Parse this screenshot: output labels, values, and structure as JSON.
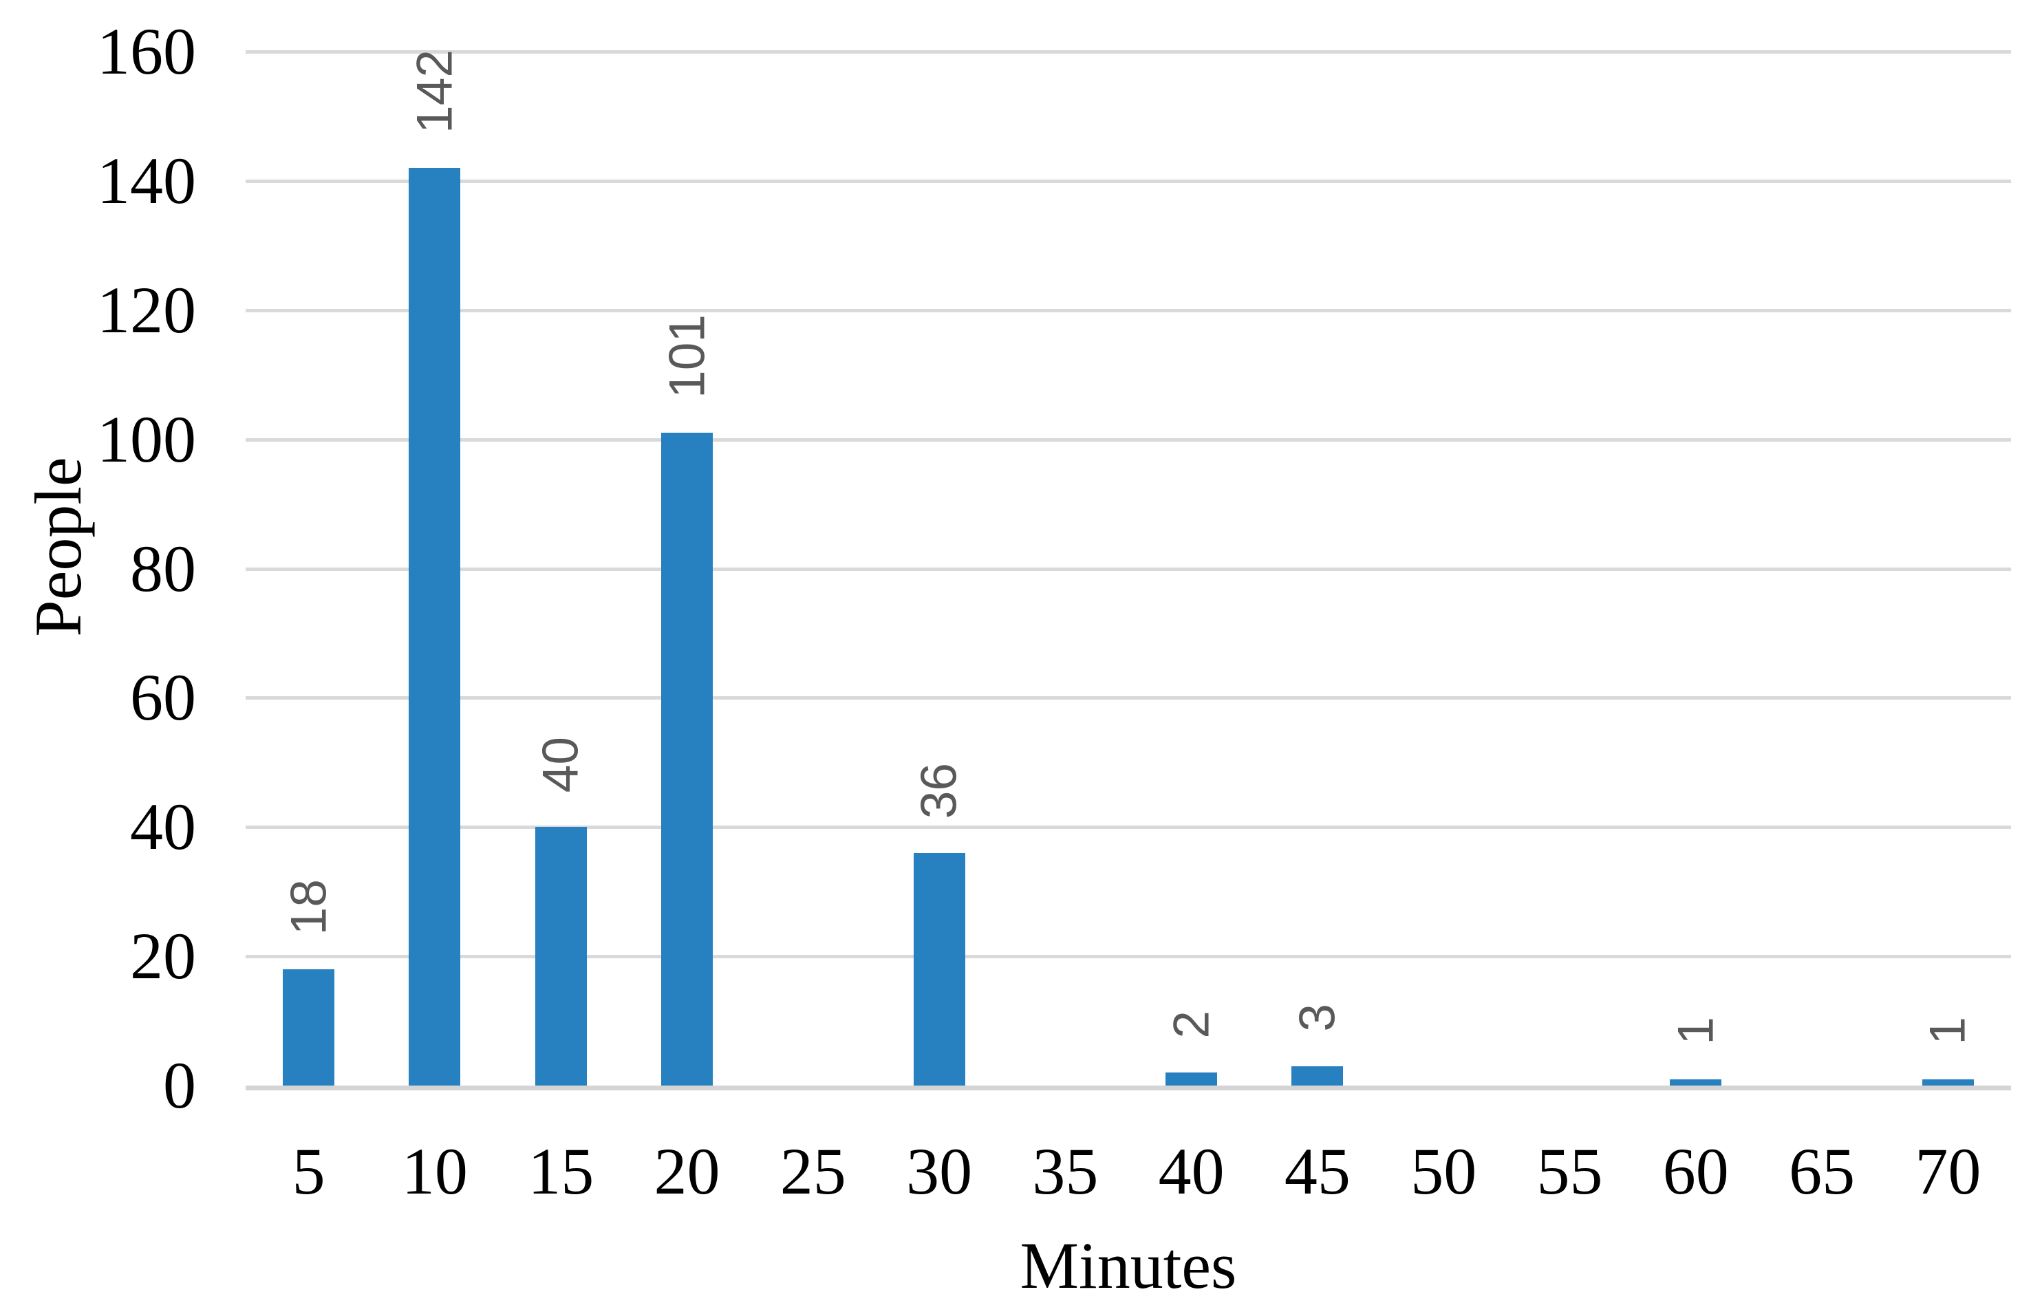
{
  "chart_data": {
    "type": "bar",
    "title": "",
    "xlabel": "Minutes",
    "ylabel": "People",
    "categories": [
      "5",
      "10",
      "15",
      "20",
      "25",
      "30",
      "35",
      "40",
      "45",
      "50",
      "55",
      "60",
      "65",
      "70"
    ],
    "values": [
      18,
      142,
      40,
      101,
      0,
      36,
      0,
      2,
      3,
      0,
      0,
      1,
      0,
      1
    ],
    "ylim": [
      0,
      160
    ],
    "yticks": [
      0,
      20,
      40,
      60,
      80,
      100,
      120,
      140,
      160
    ],
    "grid": "horizontal",
    "legend": "none",
    "data_label_rotation_degrees": -90,
    "show_labels_for_zero": false,
    "bar_color": "#2780BF",
    "data_label_color": "#595959",
    "gridline_color": "#D9D9D9",
    "axis_line_color": "#D4D4D4",
    "text_color": "#000000",
    "background_color": "#FFFFFF"
  }
}
